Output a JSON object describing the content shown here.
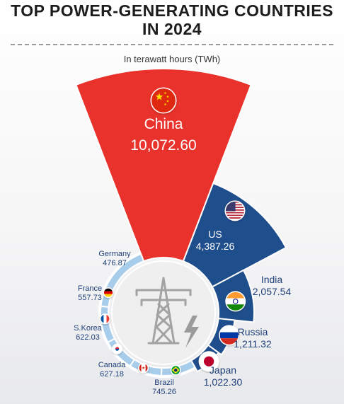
{
  "page": {
    "title_line1": "TOP POWER-GENERATING COUNTRIES",
    "title_line2": "IN 2024",
    "subtitle": "In terawatt hours (TWh)"
  },
  "colors": {
    "china": "#e8322b",
    "big": "#1f4e8c",
    "ring": "#3b7cc0",
    "ring_small": "#a8cdea",
    "label": "#1f3f78"
  },
  "chart_data": {
    "type": "pie",
    "subtype": "polar-area / radial sector",
    "title": "TOP POWER-GENERATING COUNTRIES IN 2024",
    "unit": "In terawatt hours (TWh)",
    "center_icon": "power-pylon-with-lightning-icon",
    "series": [
      {
        "name": "China",
        "value": 10072.6,
        "label": "10,072.60",
        "flag": "china-flag-icon"
      },
      {
        "name": "US",
        "value": 4387.26,
        "label": "4,387.26",
        "flag": "usa-flag-icon"
      },
      {
        "name": "India",
        "value": 2057.54,
        "label": "2,057.54",
        "flag": "india-flag-icon"
      },
      {
        "name": "Russia",
        "value": 1211.32,
        "label": "1,211.32",
        "flag": "russia-flag-icon"
      },
      {
        "name": "Japan",
        "value": 1022.3,
        "label": "1,022.30",
        "flag": "japan-flag-icon"
      },
      {
        "name": "Brazil",
        "value": 745.26,
        "label": "745.26",
        "flag": "brazil-flag-icon"
      },
      {
        "name": "Canada",
        "value": 627.18,
        "label": "627.18",
        "flag": "canada-flag-icon"
      },
      {
        "name": "S.Korea",
        "value": 622.03,
        "label": "622.03",
        "flag": "south-korea-flag-icon"
      },
      {
        "name": "France",
        "value": 557.73,
        "label": "557.73",
        "flag": "france-flag-icon"
      },
      {
        "name": "Germany",
        "value": 476.87,
        "label": "476.87",
        "flag": "germany-flag-icon"
      }
    ]
  }
}
